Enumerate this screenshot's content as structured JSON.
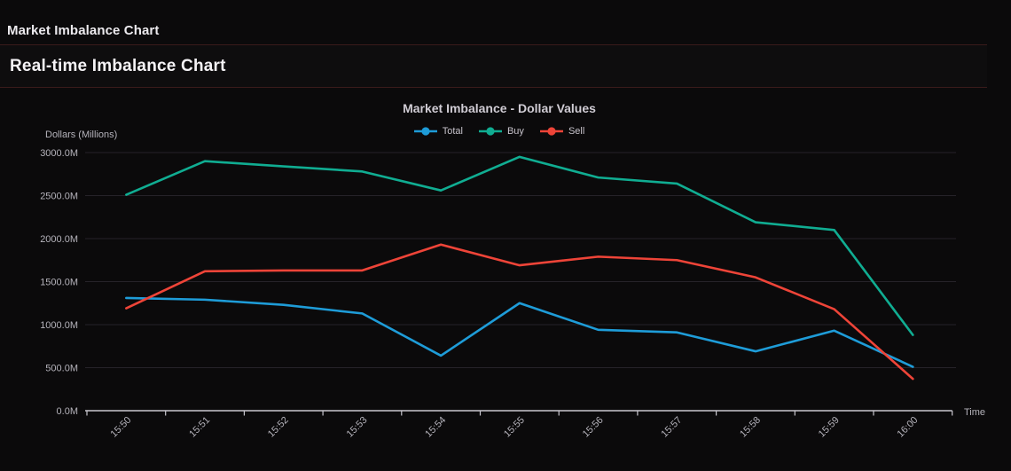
{
  "header": {
    "title": "Market Imbalance Chart"
  },
  "section": {
    "title": "Real-time Imbalance Chart"
  },
  "ui_colors": {
    "background": "#0b0a0b",
    "divider": "#3a1b1b",
    "grid": "#262329",
    "axis": "#c9c7cf",
    "axis_text": "#b5b3bb"
  },
  "chart_data": {
    "type": "line",
    "title": "Market Imbalance - Dollar Values",
    "xlabel": "Time",
    "ylabel": "Dollars (Millions)",
    "categories": [
      "15:50",
      "15:51",
      "15:52",
      "15:53",
      "15:54",
      "15:55",
      "15:56",
      "15:57",
      "15:58",
      "15:59",
      "16:00"
    ],
    "series": [
      {
        "name": "Total",
        "color": "#1e9cd8",
        "values": [
          1310,
          1290,
          1230,
          1130,
          640,
          1250,
          940,
          910,
          690,
          930,
          510
        ]
      },
      {
        "name": "Buy",
        "color": "#10ad92",
        "values": [
          2510,
          2900,
          2840,
          2780,
          2560,
          2950,
          2710,
          2640,
          2190,
          2100,
          880
        ]
      },
      {
        "name": "Sell",
        "color": "#ee4438",
        "values": [
          1190,
          1620,
          1630,
          1630,
          1930,
          1690,
          1790,
          1750,
          1550,
          1180,
          370
        ]
      }
    ],
    "ylim": [
      0,
      3000
    ],
    "y_ticks": [
      "0.0M",
      "500.0M",
      "1000.0M",
      "1500.0M",
      "2000.0M",
      "2500.0M",
      "3000.0M"
    ],
    "grid": true,
    "legend_position": "top"
  }
}
